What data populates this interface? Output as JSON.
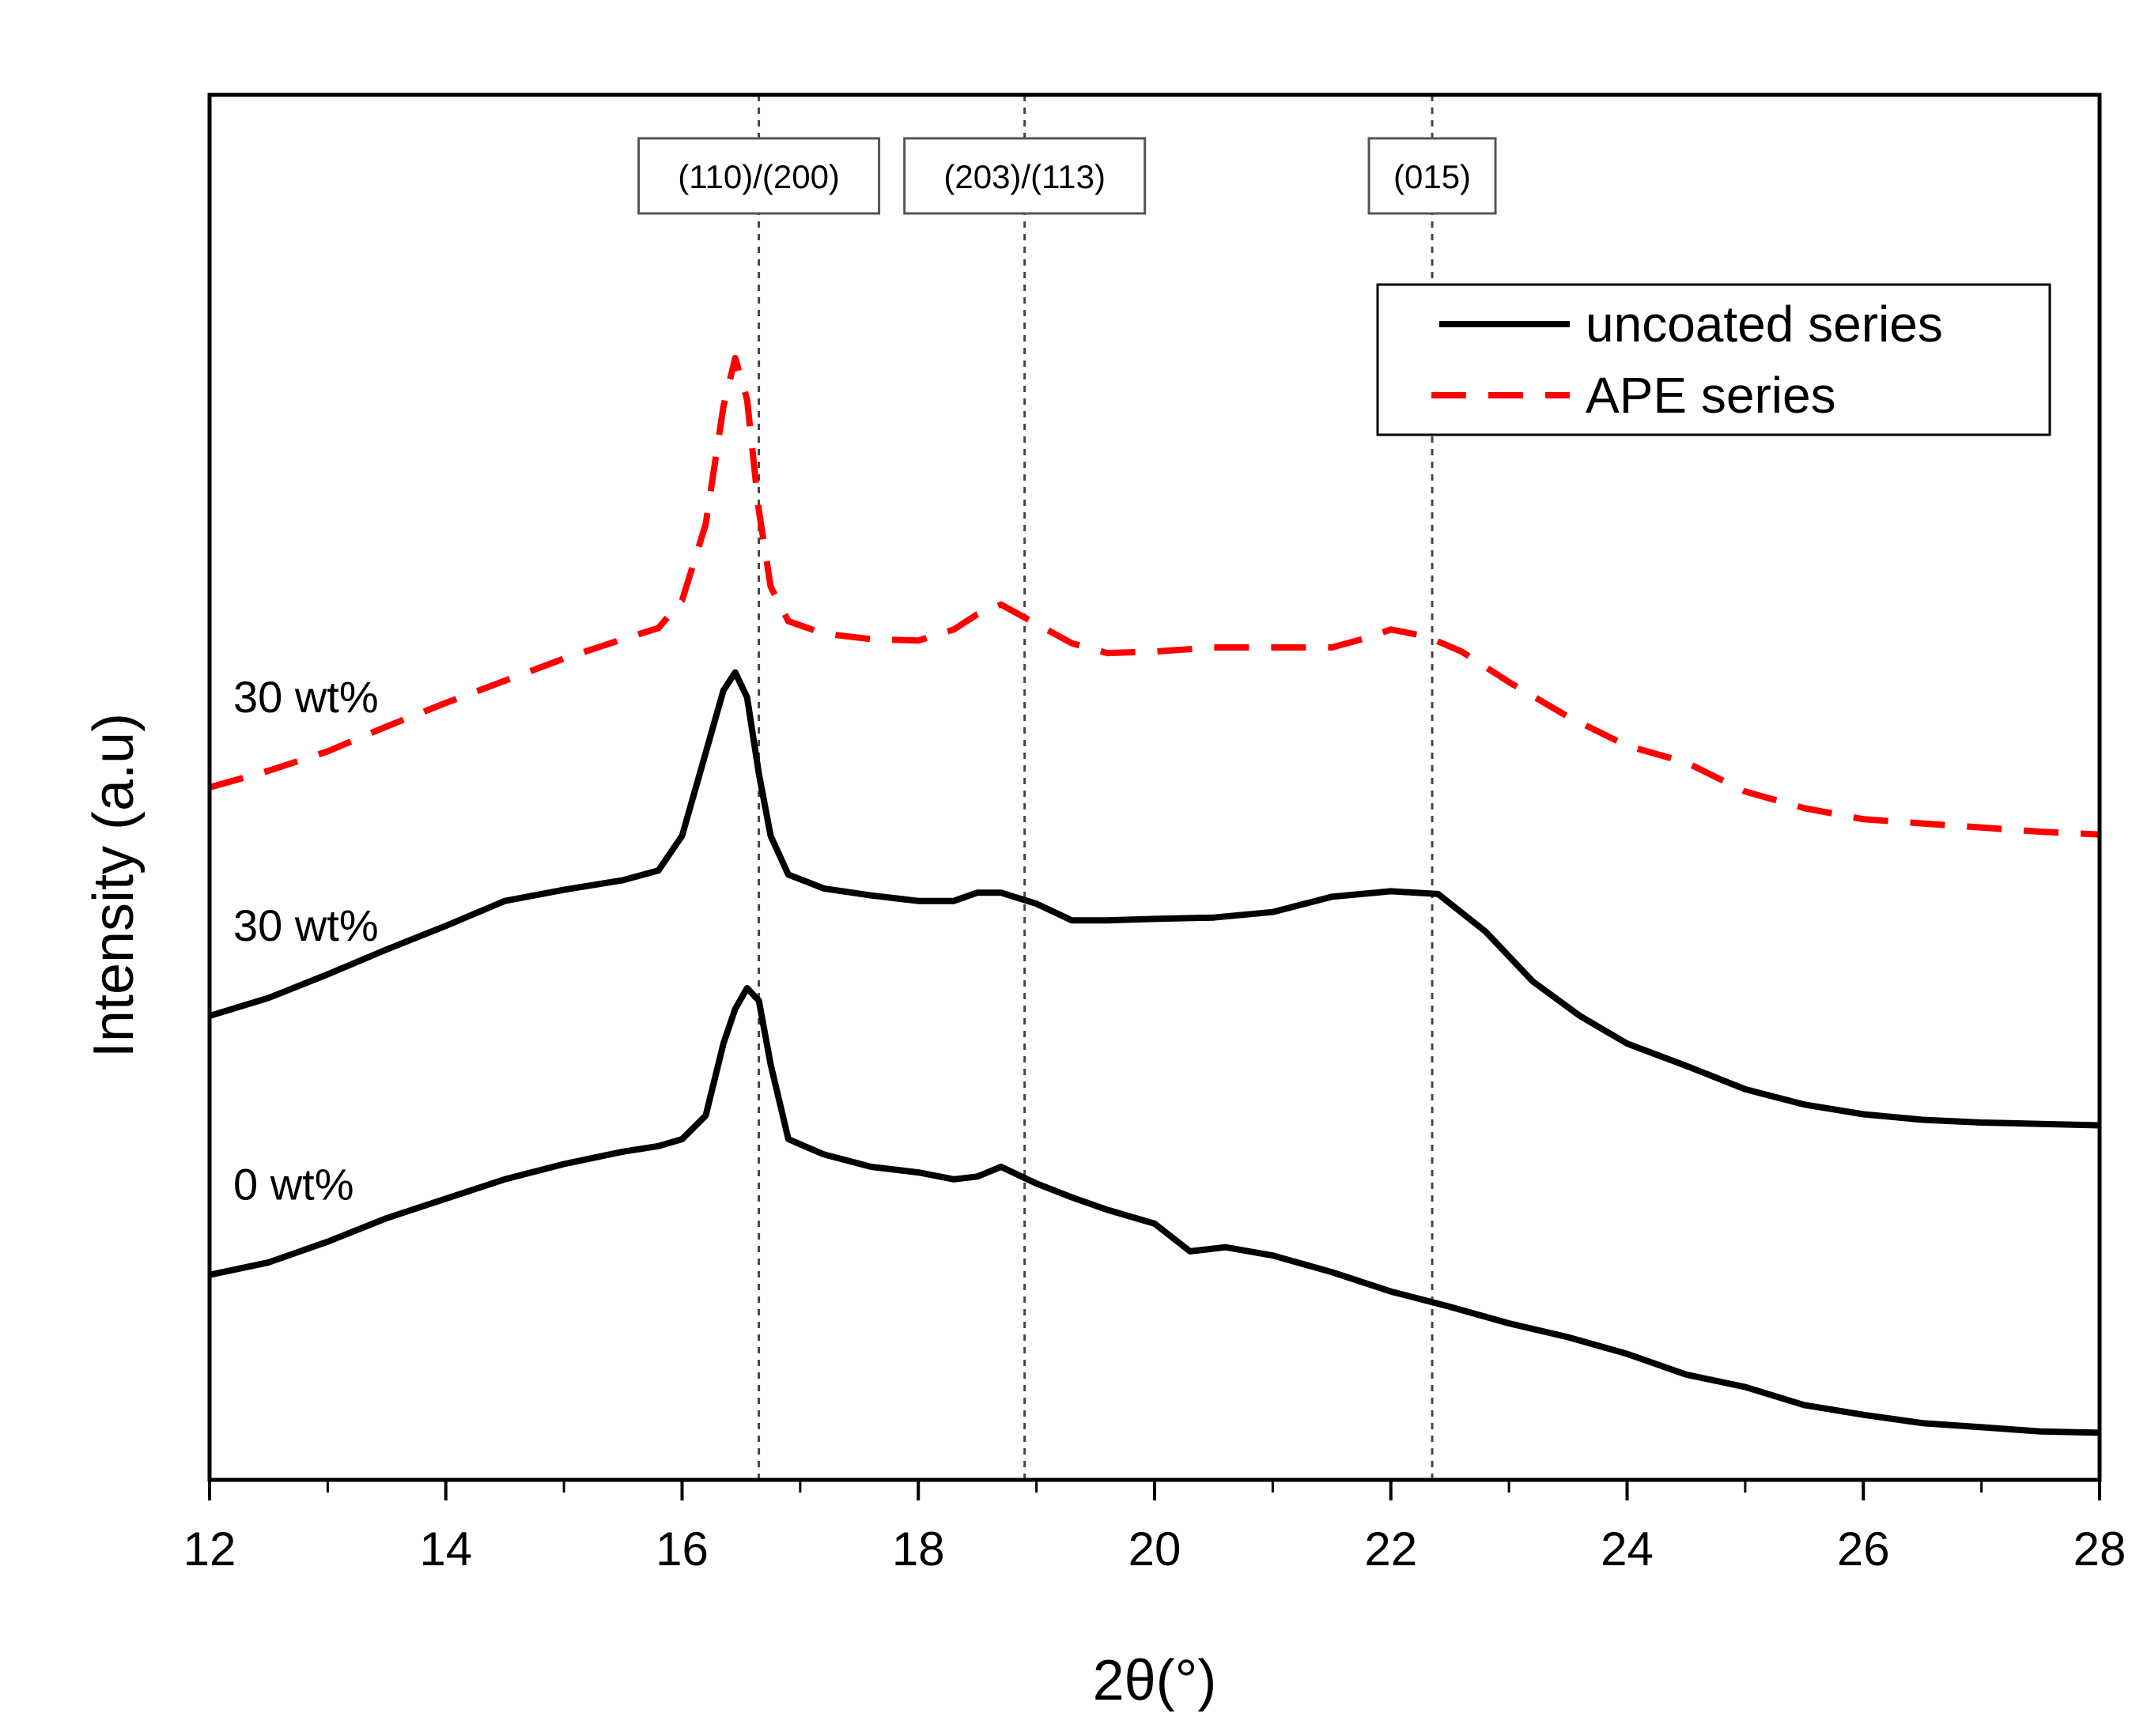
{
  "chart_data": {
    "type": "line",
    "title": "",
    "xlabel": "2θ(°)",
    "ylabel": "Intensity (a.u)",
    "xlim": [
      12,
      28
    ],
    "ylim": [
      0,
      100
    ],
    "x_ticks": [
      12,
      14,
      16,
      18,
      20,
      22,
      24,
      26,
      28
    ],
    "y_ticks_shown": false,
    "grid": false,
    "legend": {
      "position": "top-right",
      "entries": [
        {
          "name": "uncoated series",
          "color": "#000000",
          "style": "solid"
        },
        {
          "name": "APE series",
          "color": "#ff0000",
          "style": "dashed"
        }
      ]
    },
    "reference_lines": [
      {
        "x": 16.65,
        "label": "(110)/(200)"
      },
      {
        "x": 18.9,
        "label": "(203)/(113)"
      },
      {
        "x": 22.35,
        "label": "(015)"
      }
    ],
    "series": [
      {
        "name": "APE series",
        "curve_label": "30 wt%",
        "color": "#ff0000",
        "style": "dashed",
        "x": [
          12,
          12.5,
          13,
          13.5,
          14,
          14.5,
          15,
          15.5,
          15.8,
          16,
          16.2,
          16.35,
          16.45,
          16.55,
          16.65,
          16.75,
          16.9,
          17.2,
          17.6,
          18.0,
          18.3,
          18.5,
          18.7,
          19.0,
          19.3,
          19.6,
          20.0,
          20.5,
          21.0,
          21.5,
          21.8,
          22.0,
          22.3,
          22.6,
          23.0,
          23.5,
          24.0,
          24.5,
          25.0,
          25.5,
          26.0,
          26.5,
          27.0,
          27.5,
          28.0
        ],
        "y": [
          50.0,
          51.2,
          52.6,
          54.4,
          56.1,
          57.7,
          59.3,
          60.7,
          61.5,
          63.5,
          69.0,
          77.5,
          81.0,
          78.0,
          70.0,
          64.5,
          62.0,
          61.1,
          60.7,
          60.6,
          61.4,
          62.5,
          63.2,
          61.8,
          60.4,
          59.7,
          59.8,
          60.1,
          60.1,
          60.1,
          60.8,
          61.4,
          60.9,
          59.8,
          57.6,
          55.1,
          53.0,
          51.8,
          49.7,
          48.5,
          47.7,
          47.4,
          47.1,
          46.8,
          46.6
        ]
      },
      {
        "name": "uncoated series",
        "curve_label": "30 wt%",
        "color": "#000000",
        "style": "solid",
        "x": [
          12,
          12.5,
          13,
          13.5,
          14,
          14.5,
          15,
          15.5,
          15.8,
          16,
          16.2,
          16.35,
          16.45,
          16.55,
          16.65,
          16.75,
          16.9,
          17.2,
          17.6,
          18.0,
          18.3,
          18.5,
          18.7,
          19.0,
          19.3,
          19.6,
          20.0,
          20.5,
          21.0,
          21.5,
          22.0,
          22.4,
          22.8,
          23.2,
          23.6,
          24.0,
          24.5,
          25.0,
          25.5,
          26.0,
          26.5,
          27.0,
          27.5,
          28.0
        ],
        "y": [
          33.5,
          34.8,
          36.5,
          38.3,
          40.0,
          41.8,
          42.6,
          43.3,
          44.0,
          46.5,
          52.5,
          57.0,
          58.3,
          56.5,
          51.0,
          46.5,
          43.7,
          42.7,
          42.2,
          41.8,
          41.8,
          42.4,
          42.4,
          41.6,
          40.4,
          40.4,
          40.5,
          40.6,
          41.0,
          42.1,
          42.5,
          42.3,
          39.6,
          36.0,
          33.5,
          31.5,
          29.9,
          28.2,
          27.1,
          26.4,
          26.0,
          25.8,
          25.7,
          25.6
        ]
      },
      {
        "name": "uncoated series",
        "curve_label": "0 wt%",
        "color": "#000000",
        "style": "solid",
        "x": [
          12,
          12.5,
          13,
          13.5,
          14,
          14.5,
          15,
          15.5,
          15.8,
          16,
          16.2,
          16.35,
          16.45,
          16.55,
          16.65,
          16.75,
          16.9,
          17.2,
          17.6,
          18.0,
          18.3,
          18.5,
          18.7,
          19.0,
          19.3,
          19.6,
          20.0,
          20.3,
          20.6,
          21.0,
          21.5,
          22.0,
          22.5,
          23.0,
          23.5,
          24.0,
          24.5,
          25.0,
          25.5,
          26.0,
          26.5,
          27.0,
          27.5,
          28.0
        ],
        "y": [
          14.8,
          15.7,
          17.2,
          18.9,
          20.3,
          21.7,
          22.8,
          23.7,
          24.1,
          24.6,
          26.3,
          31.5,
          34.0,
          35.5,
          34.6,
          30.0,
          24.6,
          23.5,
          22.6,
          22.2,
          21.7,
          21.9,
          22.6,
          21.4,
          20.4,
          19.5,
          18.5,
          16.5,
          16.8,
          16.2,
          15.0,
          13.6,
          12.5,
          11.3,
          10.3,
          9.1,
          7.6,
          6.7,
          5.4,
          4.7,
          4.1,
          3.8,
          3.5,
          3.4
        ]
      }
    ]
  }
}
